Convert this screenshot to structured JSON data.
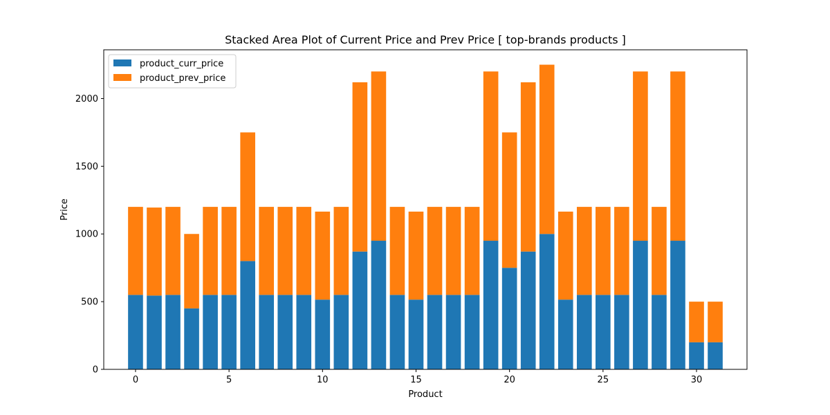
{
  "chart_data": {
    "type": "bar",
    "stacked": true,
    "title": "Stacked Area Plot of Current Price and Prev Price [ top-brands products ]",
    "xlabel": "Product",
    "ylabel": "Price",
    "x": [
      0,
      1,
      2,
      3,
      4,
      5,
      6,
      7,
      8,
      9,
      10,
      11,
      12,
      13,
      14,
      15,
      16,
      17,
      18,
      19,
      20,
      21,
      22,
      23,
      24,
      25,
      26,
      27,
      28,
      29,
      30,
      31
    ],
    "xlim": [
      -1.7,
      32.7
    ],
    "ylim": [
      0,
      2360
    ],
    "x_ticks": [
      0,
      5,
      10,
      15,
      20,
      25,
      30
    ],
    "y_ticks": [
      0,
      500,
      1000,
      1500,
      2000
    ],
    "legend_position": "upper-left",
    "grid": false,
    "series": [
      {
        "name": "product_curr_price",
        "color": "#1f77b4",
        "values": [
          550,
          545,
          550,
          450,
          550,
          550,
          800,
          550,
          550,
          550,
          515,
          550,
          870,
          950,
          550,
          515,
          550,
          550,
          550,
          950,
          750,
          870,
          1000,
          515,
          550,
          550,
          550,
          950,
          550,
          950,
          200,
          200
        ]
      },
      {
        "name": "product_prev_price",
        "color": "#ff7f0e",
        "values": [
          650,
          650,
          650,
          550,
          650,
          650,
          950,
          650,
          650,
          650,
          650,
          650,
          1250,
          1250,
          650,
          650,
          650,
          650,
          650,
          1250,
          1000,
          1250,
          1250,
          650,
          650,
          650,
          650,
          1250,
          650,
          1250,
          300,
          300
        ]
      }
    ]
  }
}
